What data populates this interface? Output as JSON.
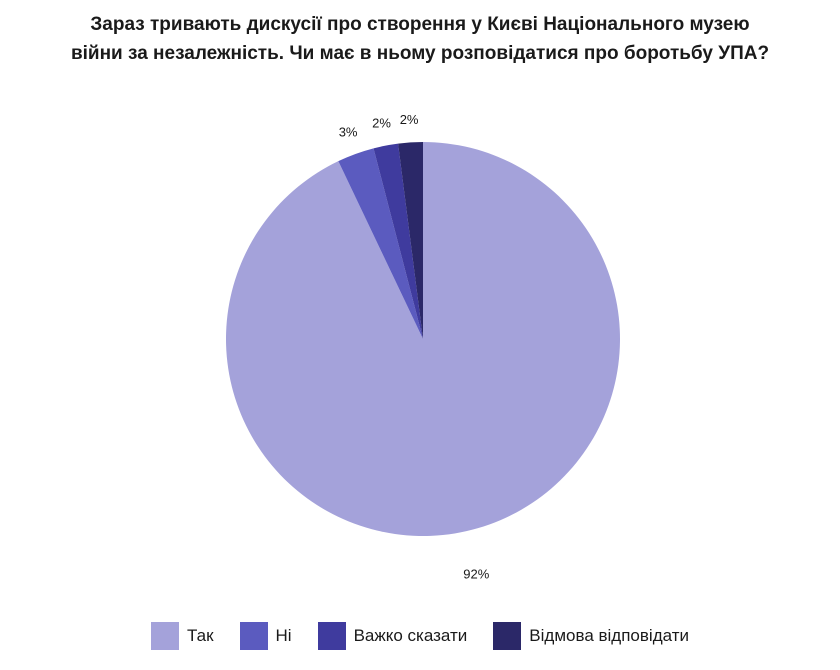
{
  "chart_data": {
    "type": "pie",
    "title": "Зараз тривають дискусії про створення у Києві Національного музею війни за незалежність. Чи має в ньому розповідатися про боротьбу УПА?",
    "title_lines": [
      "Зараз тривають дискусії про створення у Києві Національного музею",
      "війни за незалежність. Чи має в ньому розповідатися про боротьбу УПА?"
    ],
    "categories": [
      "Так",
      "Ні",
      "Важко сказати",
      "Відмова відповідати"
    ],
    "values": [
      92,
      3,
      2,
      2
    ],
    "labels": [
      "92%",
      "3%",
      "2%",
      "2%"
    ],
    "colors": [
      "#a4a2da",
      "#5b5bbf",
      "#3f3b9e",
      "#2b2868"
    ],
    "start_angle_deg": 0,
    "direction": "clockwise-from-top",
    "legend_position": "bottom"
  }
}
